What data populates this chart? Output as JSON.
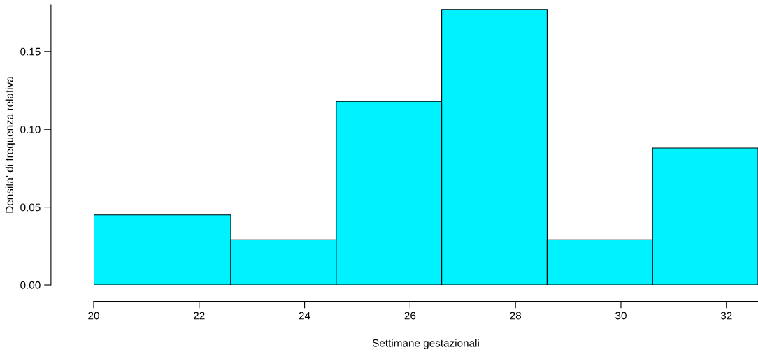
{
  "chart_data": {
    "type": "histogram",
    "xlabel": "Settimane gestazionali",
    "ylabel": "Densita' di frequenza relativa",
    "bins": [
      20,
      22.6,
      24.6,
      26.6,
      28.6,
      30.6,
      32.6
    ],
    "values": [
      0.045,
      0.029,
      0.118,
      0.177,
      0.029,
      0.088
    ],
    "color": "#00f2ff",
    "xlim": [
      20,
      32.6
    ],
    "ylim": [
      0,
      0.18
    ],
    "xticks": [
      20,
      22,
      24,
      26,
      28,
      30,
      32
    ],
    "yticks": [
      {
        "value": 0,
        "label": "0.00"
      },
      {
        "value": 0.05,
        "label": "0.05"
      },
      {
        "value": 0.1,
        "label": "0.10"
      },
      {
        "value": 0.15,
        "label": "0.15"
      }
    ],
    "grid": false,
    "legend": false
  }
}
